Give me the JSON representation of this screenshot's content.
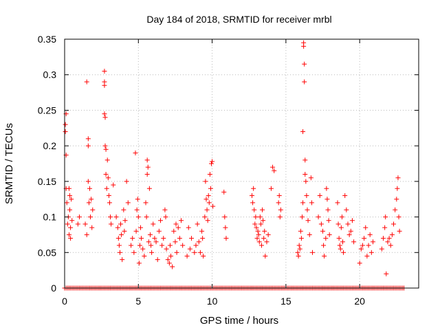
{
  "chart_data": {
    "type": "scatter",
    "title": "Day 184 of 2018, SRMTID for receiver mrbl",
    "xlabel": "GPS time / hours",
    "ylabel": "SRMTID / TECUs",
    "xlim": [
      0,
      24
    ],
    "ylim": [
      0,
      0.35
    ],
    "xticks": [
      0,
      5,
      10,
      15,
      20
    ],
    "xtick_labels": [
      "0",
      "5",
      "10",
      "15",
      "20"
    ],
    "yticks": [
      0,
      0.05,
      0.1,
      0.15,
      0.2,
      0.25,
      0.3,
      0.35
    ],
    "ytick_labels": [
      "0",
      "0.05",
      "0.1",
      "0.15",
      "0.2",
      "0.25",
      "0.3",
      "0.35"
    ],
    "grid": true,
    "marker": "+",
    "color": "#ff0000",
    "series": [
      {
        "name": "SRMTID",
        "points": [
          [
            0.05,
            0.23
          ],
          [
            0.05,
            0.22
          ],
          [
            0.1,
            0.245
          ],
          [
            0.1,
            0.187
          ],
          [
            0.1,
            0.14
          ],
          [
            0.15,
            0.12
          ],
          [
            0.2,
            0.09
          ],
          [
            0.25,
            0.1
          ],
          [
            0.3,
            0.14
          ],
          [
            0.3,
            0.075
          ],
          [
            0.35,
            0.11
          ],
          [
            0.35,
            0.13
          ],
          [
            0.4,
            0.085
          ],
          [
            0.4,
            0.07
          ],
          [
            0.45,
            0.125
          ],
          [
            0.5,
            0.095
          ],
          [
            0.9,
            0.09
          ],
          [
            1.0,
            0.1
          ],
          [
            1.4,
            0.09
          ],
          [
            1.5,
            0.075
          ],
          [
            1.5,
            0.29
          ],
          [
            1.6,
            0.21
          ],
          [
            1.6,
            0.2
          ],
          [
            1.6,
            0.15
          ],
          [
            1.65,
            0.12
          ],
          [
            1.7,
            0.14
          ],
          [
            1.75,
            0.1
          ],
          [
            1.8,
            0.125
          ],
          [
            1.85,
            0.085
          ],
          [
            1.9,
            0.11
          ],
          [
            2.7,
            0.305
          ],
          [
            2.7,
            0.29
          ],
          [
            2.7,
            0.285
          ],
          [
            2.7,
            0.245
          ],
          [
            2.75,
            0.24
          ],
          [
            2.75,
            0.2
          ],
          [
            2.8,
            0.195
          ],
          [
            2.8,
            0.16
          ],
          [
            2.85,
            0.14
          ],
          [
            2.9,
            0.18
          ],
          [
            2.95,
            0.155
          ],
          [
            3.0,
            0.13
          ],
          [
            3.05,
            0.12
          ],
          [
            3.1,
            0.1
          ],
          [
            3.15,
            0.09
          ],
          [
            3.3,
            0.145
          ],
          [
            3.5,
            0.1
          ],
          [
            3.6,
            0.085
          ],
          [
            3.65,
            0.07
          ],
          [
            3.7,
            0.06
          ],
          [
            3.75,
            0.05
          ],
          [
            3.8,
            0.09
          ],
          [
            3.85,
            0.075
          ],
          [
            3.9,
            0.04
          ],
          [
            4.0,
            0.11
          ],
          [
            4.05,
            0.08
          ],
          [
            4.1,
            0.095
          ],
          [
            4.2,
            0.15
          ],
          [
            4.3,
            0.12
          ],
          [
            4.5,
            0.06
          ],
          [
            4.6,
            0.07
          ],
          [
            4.7,
            0.05
          ],
          [
            4.8,
            0.19
          ],
          [
            4.85,
            0.08
          ],
          [
            4.9,
            0.11
          ],
          [
            4.95,
            0.125
          ],
          [
            5.0,
            0.1
          ],
          [
            5.05,
            0.035
          ],
          [
            5.1,
            0.06
          ],
          [
            5.15,
            0.085
          ],
          [
            5.2,
            0.07
          ],
          [
            5.3,
            0.055
          ],
          [
            5.4,
            0.045
          ],
          [
            5.5,
            0.12
          ],
          [
            5.55,
            0.1
          ],
          [
            5.6,
            0.18
          ],
          [
            5.6,
            0.16
          ],
          [
            5.65,
            0.17
          ],
          [
            5.7,
            0.065
          ],
          [
            5.75,
            0.14
          ],
          [
            5.8,
            0.075
          ],
          [
            5.85,
            0.06
          ],
          [
            5.9,
            0.05
          ],
          [
            6.0,
            0.09
          ],
          [
            6.1,
            0.07
          ],
          [
            6.2,
            0.065
          ],
          [
            6.3,
            0.04
          ],
          [
            6.4,
            0.08
          ],
          [
            6.5,
            0.095
          ],
          [
            6.6,
            0.06
          ],
          [
            6.7,
            0.07
          ],
          [
            6.8,
            0.11
          ],
          [
            6.85,
            0.1
          ],
          [
            6.9,
            0.055
          ],
          [
            7.0,
            0.04
          ],
          [
            7.1,
            0.035
          ],
          [
            7.15,
            0.06
          ],
          [
            7.2,
            0.045
          ],
          [
            7.3,
            0.03
          ],
          [
            7.4,
            0.08
          ],
          [
            7.5,
            0.065
          ],
          [
            7.55,
            0.09
          ],
          [
            7.6,
            0.05
          ],
          [
            7.7,
            0.085
          ],
          [
            7.8,
            0.07
          ],
          [
            7.9,
            0.095
          ],
          [
            8.0,
            0.06
          ],
          [
            8.3,
            0.045
          ],
          [
            8.4,
            0.085
          ],
          [
            8.5,
            0.055
          ],
          [
            8.6,
            0.07
          ],
          [
            8.8,
            0.05
          ],
          [
            8.9,
            0.06
          ],
          [
            9.0,
            0.09
          ],
          [
            9.1,
            0.065
          ],
          [
            9.2,
            0.05
          ],
          [
            9.3,
            0.08
          ],
          [
            9.35,
            0.07
          ],
          [
            9.4,
            0.045
          ],
          [
            9.5,
            0.1
          ],
          [
            9.55,
            0.15
          ],
          [
            9.6,
            0.125
          ],
          [
            9.65,
            0.11
          ],
          [
            9.7,
            0.095
          ],
          [
            9.75,
            0.13
          ],
          [
            9.8,
            0.12
          ],
          [
            9.85,
            0.16
          ],
          [
            9.9,
            0.14
          ],
          [
            9.95,
            0.175
          ],
          [
            10.0,
            0.178
          ],
          [
            10.05,
            0.115
          ],
          [
            10.8,
            0.135
          ],
          [
            10.85,
            0.1
          ],
          [
            10.9,
            0.085
          ],
          [
            10.95,
            0.07
          ],
          [
            12.7,
            0.13
          ],
          [
            12.75,
            0.12
          ],
          [
            12.8,
            0.14
          ],
          [
            12.85,
            0.11
          ],
          [
            12.9,
            0.09
          ],
          [
            12.95,
            0.1
          ],
          [
            13.0,
            0.085
          ],
          [
            13.05,
            0.07
          ],
          [
            13.1,
            0.08
          ],
          [
            13.15,
            0.075
          ],
          [
            13.2,
            0.065
          ],
          [
            13.25,
            0.1
          ],
          [
            13.3,
            0.09
          ],
          [
            13.35,
            0.06
          ],
          [
            13.4,
            0.11
          ],
          [
            13.45,
            0.095
          ],
          [
            13.5,
            0.07
          ],
          [
            13.55,
            0.08
          ],
          [
            13.6,
            0.045
          ],
          [
            13.7,
            0.065
          ],
          [
            13.8,
            0.075
          ],
          [
            14.0,
            0.14
          ],
          [
            14.1,
            0.17
          ],
          [
            14.2,
            0.165
          ],
          [
            14.5,
            0.12
          ],
          [
            14.55,
            0.13
          ],
          [
            14.6,
            0.1
          ],
          [
            14.65,
            0.11
          ],
          [
            15.8,
            0.05
          ],
          [
            15.85,
            0.045
          ],
          [
            15.9,
            0.06
          ],
          [
            15.95,
            0.055
          ],
          [
            16.0,
            0.08
          ],
          [
            16.05,
            0.07
          ],
          [
            16.1,
            0.1
          ],
          [
            16.15,
            0.12
          ],
          [
            16.2,
            0.345
          ],
          [
            16.2,
            0.34
          ],
          [
            16.25,
            0.315
          ],
          [
            16.25,
            0.29
          ],
          [
            16.15,
            0.22
          ],
          [
            16.3,
            0.18
          ],
          [
            16.3,
            0.16
          ],
          [
            16.35,
            0.15
          ],
          [
            16.4,
            0.13
          ],
          [
            16.45,
            0.11
          ],
          [
            16.5,
            0.095
          ],
          [
            16.6,
            0.075
          ],
          [
            16.7,
            0.155
          ],
          [
            16.75,
            0.12
          ],
          [
            16.8,
            0.05
          ],
          [
            17.2,
            0.1
          ],
          [
            17.3,
            0.13
          ],
          [
            17.4,
            0.09
          ],
          [
            17.5,
            0.08
          ],
          [
            17.55,
            0.06
          ],
          [
            17.6,
            0.045
          ],
          [
            17.7,
            0.07
          ],
          [
            17.75,
            0.14
          ],
          [
            17.8,
            0.125
          ],
          [
            17.85,
            0.11
          ],
          [
            17.9,
            0.095
          ],
          [
            17.95,
            0.075
          ],
          [
            18.5,
            0.12
          ],
          [
            18.55,
            0.09
          ],
          [
            18.6,
            0.07
          ],
          [
            18.65,
            0.06
          ],
          [
            18.7,
            0.055
          ],
          [
            18.75,
            0.085
          ],
          [
            18.8,
            0.1
          ],
          [
            18.85,
            0.065
          ],
          [
            18.9,
            0.05
          ],
          [
            19.0,
            0.13
          ],
          [
            19.1,
            0.11
          ],
          [
            19.2,
            0.09
          ],
          [
            19.3,
            0.075
          ],
          [
            19.4,
            0.08
          ],
          [
            19.5,
            0.095
          ],
          [
            19.6,
            0.065
          ],
          [
            20.0,
            0.035
          ],
          [
            20.1,
            0.055
          ],
          [
            20.2,
            0.06
          ],
          [
            20.3,
            0.07
          ],
          [
            20.4,
            0.085
          ],
          [
            20.5,
            0.045
          ],
          [
            20.6,
            0.06
          ],
          [
            20.7,
            0.075
          ],
          [
            20.8,
            0.05
          ],
          [
            20.9,
            0.065
          ],
          [
            21.5,
            0.055
          ],
          [
            21.6,
            0.07
          ],
          [
            21.7,
            0.085
          ],
          [
            21.75,
            0.1
          ],
          [
            21.8,
            0.02
          ],
          [
            21.9,
            0.065
          ],
          [
            22.0,
            0.07
          ],
          [
            22.1,
            0.06
          ],
          [
            22.2,
            0.075
          ],
          [
            22.3,
            0.09
          ],
          [
            22.4,
            0.11
          ],
          [
            22.5,
            0.125
          ],
          [
            22.55,
            0.14
          ],
          [
            22.6,
            0.155
          ],
          [
            22.65,
            0.1
          ],
          [
            22.7,
            0.08
          ]
        ],
        "baseline_y": 0,
        "baseline_x_start": 0,
        "baseline_x_end": 23,
        "baseline_step": 0.1
      }
    ]
  }
}
